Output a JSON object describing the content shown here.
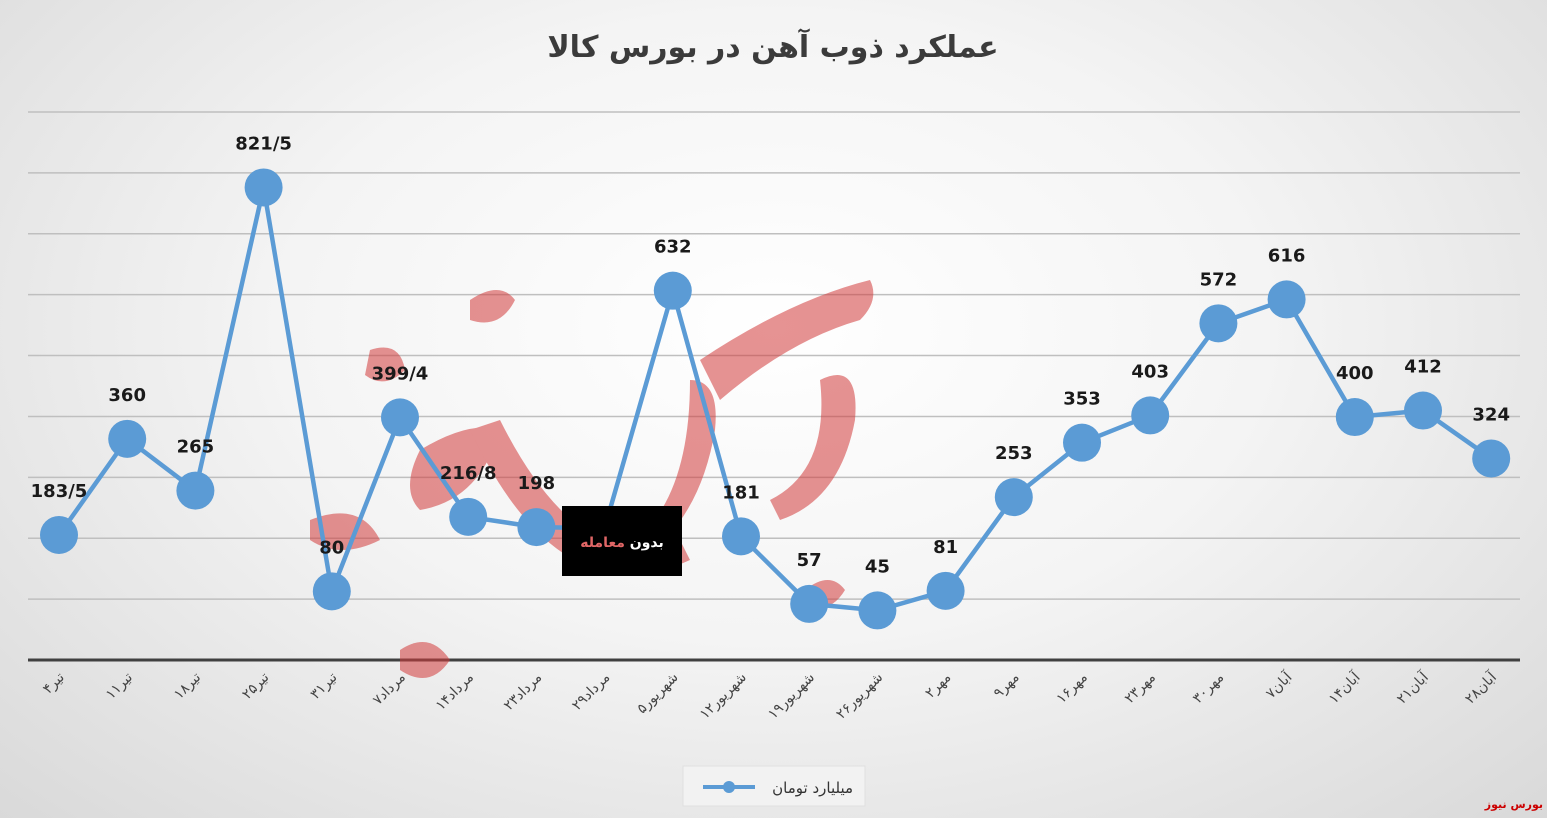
{
  "chart_data": {
    "type": "line",
    "title": "عملکرد ذوب آهن در بورس کالا",
    "xlabel": "",
    "ylabel": "",
    "categories": [
      "۴تیر",
      "۱۱تیر",
      "۱۸تیر",
      "۲۵تیر",
      "۳۱تیر",
      "۷مرداد",
      "۱۴مرداد",
      "۲۳مرداد",
      "۲۹مرداد",
      "۵شهریور",
      "۱۲شهریور",
      "۱۹شهریور",
      "۲۶شهریور",
      "۲مهر",
      "۹مهر",
      "۱۶مهر",
      "۲۳مهر",
      "۳۰مهر",
      "۷آبان",
      "۱۴آبان",
      "۲۱آبان",
      "۲۸آبان"
    ],
    "series": [
      {
        "name": "میلیارد تومان",
        "values": [
          183.5,
          360,
          265,
          821.5,
          80,
          399.4,
          216.8,
          198,
          null,
          632,
          181,
          57,
          45,
          81,
          253,
          353,
          403,
          572,
          616,
          400,
          412,
          324
        ],
        "labels": [
          "183/5",
          "360",
          "265",
          "821/5",
          "80",
          "399/4",
          "216/8",
          "198",
          "",
          "632",
          "181",
          "57",
          "45",
          "81",
          "253",
          "353",
          "403",
          "572",
          "616",
          "400",
          "412",
          "324"
        ]
      }
    ],
    "gap_bridge_value": 196,
    "ylim": [
      -46,
      960
    ],
    "grid": true,
    "legend": "bottom",
    "colors": {
      "line": "#5b9bd5",
      "grid": "#bfbfbf",
      "axis": "#404040",
      "annotation_bg": "#000000",
      "annotation_text": "#ffffff",
      "annotation_highlight": "#e06666",
      "source": "#cc0000"
    },
    "annotation": {
      "text_prefix": "بدون ",
      "text_highlight": "معامله",
      "category": "۲۹مرداد"
    }
  },
  "source": {
    "label": "بورس نیوز"
  }
}
